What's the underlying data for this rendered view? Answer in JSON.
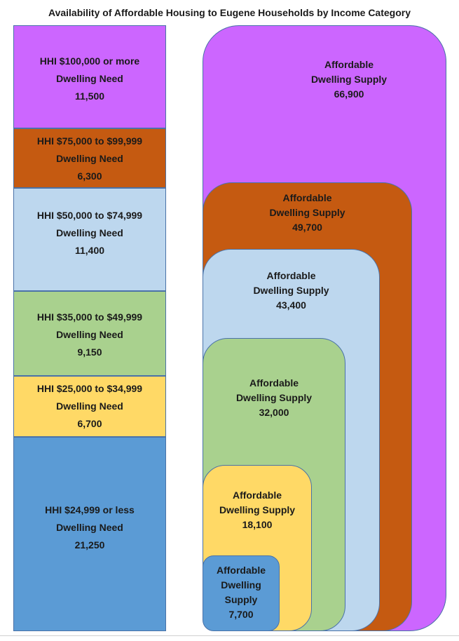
{
  "title": "Availability of Affordable Housing to Eugene Households by Income Category",
  "need_blocks": [
    {
      "income": "HHI $100,000 or more",
      "label": "Dwelling Need",
      "value": "11,500",
      "color": "#cc66ff"
    },
    {
      "income": "HHI $75,000 to $99,999",
      "label": "Dwelling Need",
      "value": "6,300",
      "color": "#c55a11"
    },
    {
      "income": "HHI $50,000 to $74,999",
      "label": "Dwelling Need",
      "value": "11,400",
      "color": "#bdd7ee"
    },
    {
      "income": "HHI $35,000 to $49,999",
      "label": "Dwelling Need",
      "value": "9,150",
      "color": "#a9d18e"
    },
    {
      "income": "HHI $25,000 to $34,999",
      "label": "Dwelling Need",
      "value": "6,700",
      "color": "#ffd966"
    },
    {
      "income": "HHI $24,999 or less",
      "label": "Dwelling Need",
      "value": "21,250",
      "color": "#5b9bd5"
    }
  ],
  "supply_blocks": [
    {
      "line1": "Affordable",
      "line2": "Dwelling Supply",
      "value": "66,900",
      "color": "#cc66ff"
    },
    {
      "line1": "Affordable",
      "line2": "Dwelling Supply",
      "value": "49,700",
      "color": "#c55a11"
    },
    {
      "line1": "Affordable",
      "line2": "Dwelling Supply",
      "value": "43,400",
      "color": "#bdd7ee"
    },
    {
      "line1": "Affordable",
      "line2": "Dwelling Supply",
      "value": "32,000",
      "color": "#a9d18e"
    },
    {
      "line1": "Affordable",
      "line2": "Dwelling Supply",
      "value": "18,100",
      "color": "#ffd966"
    },
    {
      "line1": "Affordable",
      "line2": "Dwelling",
      "line3": "Supply",
      "value": "7,700",
      "color": "#5b9bd5"
    }
  ]
}
